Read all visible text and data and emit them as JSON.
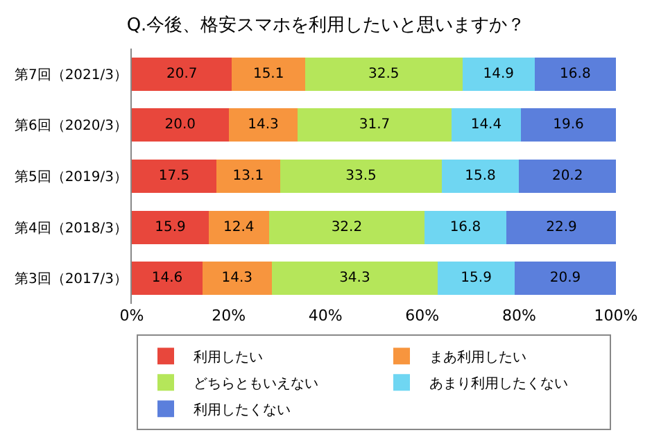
{
  "chart_data": {
    "type": "bar",
    "orientation": "horizontal",
    "stacked": true,
    "title": "Q.今後、格安スマホを利用したいと思いますか？",
    "categories": [
      "第7回（2021/3）",
      "第6回（2020/3）",
      "第5回（2019/3）",
      "第4回（2018/3）",
      "第3回（2017/3）"
    ],
    "series": [
      {
        "name": "利用したい",
        "color": "#e8473c",
        "values": [
          20.7,
          20.0,
          17.5,
          15.9,
          14.6
        ],
        "value_labels": [
          "20.7",
          "20.0",
          "17.5",
          "15.9",
          "14.6"
        ]
      },
      {
        "name": "まあ利用したい",
        "color": "#f7953e",
        "values": [
          15.1,
          14.3,
          13.1,
          12.4,
          14.3
        ],
        "value_labels": [
          "15.1",
          "14.3",
          "13.1",
          "12.4",
          "14.3"
        ]
      },
      {
        "name": "どちらともいえない",
        "color": "#b5e65a",
        "values": [
          32.5,
          31.7,
          33.5,
          32.2,
          34.3
        ],
        "value_labels": [
          "32.5",
          "31.7",
          "33.5",
          "32.2",
          "34.3"
        ]
      },
      {
        "name": "あまり利用したくない",
        "color": "#6fd6f2",
        "values": [
          14.9,
          14.4,
          15.8,
          16.8,
          15.9
        ],
        "value_labels": [
          "14.9",
          "14.4",
          "15.8",
          "16.8",
          "15.9"
        ]
      },
      {
        "name": "利用したくない",
        "color": "#5b7fdc",
        "values": [
          16.8,
          19.6,
          20.2,
          22.9,
          20.9
        ],
        "value_labels": [
          "16.8",
          "19.6",
          "20.2",
          "22.9",
          "20.9"
        ]
      }
    ],
    "xlim": [
      0,
      100
    ],
    "xticks": [
      {
        "value": 0,
        "label": "0%"
      },
      {
        "value": 20,
        "label": "20%"
      },
      {
        "value": 40,
        "label": "40%"
      },
      {
        "value": 60,
        "label": "60%"
      },
      {
        "value": 80,
        "label": "80%"
      },
      {
        "value": 100,
        "label": "100%"
      }
    ],
    "legend": "bottom"
  }
}
